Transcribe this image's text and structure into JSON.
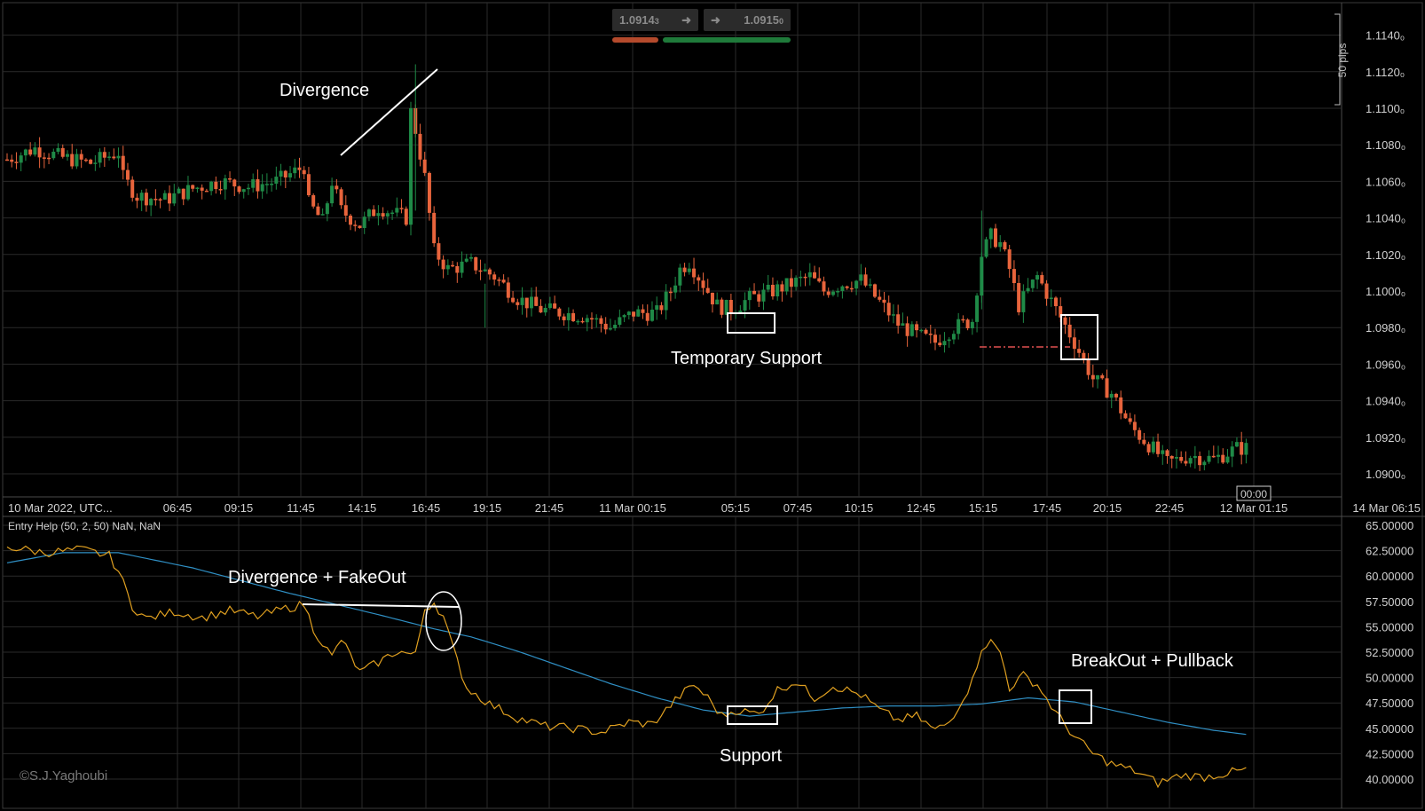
{
  "quote": {
    "bid": "1.0914",
    "bid_pipette": "3",
    "ask": "1.0915",
    "ask_pipette": "0",
    "arrow": "➜"
  },
  "range_marker": "50 pips",
  "indicator_label": "Entry Help (50, 2, 50) NaN, NaN",
  "watermark": "©S.J.Yaghoubi",
  "time_marker": "00:00",
  "colors": {
    "up": "#1f8a47",
    "down": "#e8643c",
    "osc": "#e0a020",
    "ma": "#2f8fc4",
    "grid": "#2a2a2a"
  },
  "annotations": {
    "divergence": "Divergence",
    "temp_support": "Temporary Support",
    "divergence_fakeout": "Divergence + FakeOut",
    "support": "Support",
    "breakout_pullback": "BreakOut + Pullback"
  },
  "chart_data": [
    {
      "type": "candlestick",
      "title": "",
      "xlabel": "",
      "ylabel": "",
      "y_ticks": [
        "1.1140₀",
        "1.1120₀",
        "1.1100₀",
        "1.1080₀",
        "1.1060₀",
        "1.1040₀",
        "1.1020₀",
        "1.1000₀",
        "1.0980₀",
        "1.0960₀",
        "1.0940₀",
        "1.0920₀",
        "1.0900₀"
      ],
      "y_tick_values": [
        1.114,
        1.112,
        1.11,
        1.108,
        1.106,
        1.104,
        1.102,
        1.1,
        1.098,
        1.096,
        1.094,
        1.092,
        1.09
      ],
      "x_ticks": [
        "10 Mar 2022, UTC...",
        "06:45",
        "09:15",
        "11:45",
        "14:15",
        "16:45",
        "19:15",
        "21:45",
        "11 Mar 00:15",
        "05:15",
        "07:45",
        "10:15",
        "12:45",
        "15:15",
        "17:45",
        "20:15",
        "22:45",
        "12 Mar 01:15",
        "14 Mar 06:15"
      ],
      "ylim": [
        1.0888,
        1.115
      ],
      "grid": true,
      "close_path": [
        [
          0,
          1.1072
        ],
        [
          6,
          1.1078
        ],
        [
          12,
          1.1073
        ],
        [
          18,
          1.107
        ],
        [
          24,
          1.1076
        ],
        [
          25,
          1.1062
        ],
        [
          28,
          1.1052
        ],
        [
          34,
          1.105
        ],
        [
          40,
          1.1056
        ],
        [
          46,
          1.106
        ],
        [
          52,
          1.1057
        ],
        [
          58,
          1.106
        ],
        [
          64,
          1.1068
        ],
        [
          65,
          1.1048
        ],
        [
          68,
          1.1038
        ],
        [
          70,
          1.106
        ],
        [
          72,
          1.1044
        ],
        [
          76,
          1.1036
        ],
        [
          80,
          1.1046
        ],
        [
          84,
          1.1042
        ],
        [
          86,
          1.104
        ],
        [
          87,
          1.1098
        ],
        [
          88,
          1.1088
        ],
        [
          90,
          1.1062
        ],
        [
          92,
          1.1022
        ],
        [
          95,
          1.1012
        ],
        [
          100,
          1.1015
        ],
        [
          105,
          1.1008
        ],
        [
          110,
          1.0996
        ],
        [
          115,
          1.099
        ],
        [
          120,
          1.0988
        ],
        [
          125,
          1.0986
        ],
        [
          130,
          1.098
        ],
        [
          135,
          1.0988
        ],
        [
          140,
          1.0988
        ],
        [
          143,
          1.1
        ],
        [
          145,
          1.1012
        ],
        [
          147,
          1.1016
        ],
        [
          150,
          1.1004
        ],
        [
          153,
          1.0992
        ],
        [
          156,
          1.099
        ],
        [
          160,
          1.0996
        ],
        [
          165,
          1.1
        ],
        [
          170,
          1.1005
        ],
        [
          173,
          1.1008
        ],
        [
          176,
          1.1
        ],
        [
          180,
          1.1004
        ],
        [
          184,
          1.1006
        ],
        [
          188,
          1.0994
        ],
        [
          192,
          1.0982
        ],
        [
          196,
          1.0976
        ],
        [
          200,
          1.0972
        ],
        [
          204,
          1.098
        ],
        [
          208,
          1.0984
        ],
        [
          210,
          1.102
        ],
        [
          212,
          1.103
        ],
        [
          214,
          1.1026
        ],
        [
          216,
          1.1012
        ],
        [
          218,
          1.0992
        ],
        [
          220,
          1.1
        ],
        [
          222,
          1.1008
        ],
        [
          226,
          1.099
        ],
        [
          230,
          1.0972
        ],
        [
          232,
          1.0962
        ],
        [
          234,
          1.0952
        ],
        [
          238,
          1.0944
        ],
        [
          242,
          1.0926
        ],
        [
          246,
          1.0916
        ],
        [
          250,
          1.0906
        ],
        [
          255,
          1.091
        ],
        [
          260,
          1.0908
        ],
        [
          265,
          1.0914
        ],
        [
          267,
          1.0914
        ]
      ]
    },
    {
      "type": "line",
      "title": "Entry Help (50, 2, 50) NaN, NaN",
      "y_ticks": [
        "65.00000",
        "62.50000",
        "60.00000",
        "57.50000",
        "55.00000",
        "52.50000",
        "50.00000",
        "47.50000",
        "45.00000",
        "42.50000",
        "40.00000"
      ],
      "y_tick_values": [
        65,
        62.5,
        60,
        57.5,
        55,
        52.5,
        50,
        47.5,
        45,
        42.5,
        40
      ],
      "ylim": [
        38.5,
        65.5
      ],
      "series": [
        {
          "values_path": [
            [
              0,
              62.9
            ],
            [
              8,
              62.3
            ],
            [
              16,
              62.6
            ],
            [
              22,
              62.0
            ],
            [
              24,
              60.5
            ],
            [
              27,
              57.0
            ],
            [
              30,
              55.8
            ],
            [
              36,
              56.5
            ],
            [
              42,
              55.9
            ],
            [
              48,
              56.6
            ],
            [
              54,
              56.0
            ],
            [
              60,
              56.8
            ],
            [
              64,
              57.2
            ],
            [
              66,
              54.8
            ],
            [
              70,
              52.0
            ],
            [
              72,
              53.8
            ],
            [
              76,
              50.5
            ],
            [
              80,
              51.5
            ],
            [
              84,
              52.6
            ],
            [
              88,
              52.2
            ],
            [
              90,
              56.8
            ],
            [
              92,
              57.4
            ],
            [
              94,
              56.0
            ],
            [
              96,
              53.0
            ],
            [
              99,
              49.0
            ],
            [
              104,
              47.4
            ],
            [
              110,
              46.0
            ],
            [
              116,
              45.2
            ],
            [
              122,
              45.0
            ],
            [
              128,
              44.6
            ],
            [
              134,
              45.6
            ],
            [
              139,
              45.4
            ],
            [
              145,
              48.2
            ],
            [
              148,
              49.3
            ],
            [
              151,
              48.0
            ],
            [
              154,
              46.2
            ],
            [
              157,
              46.8
            ],
            [
              162,
              46.4
            ],
            [
              166,
              48.8
            ],
            [
              170,
              49.6
            ],
            [
              174,
              48.0
            ],
            [
              178,
              49.2
            ],
            [
              184,
              48.3
            ],
            [
              188,
              46.8
            ],
            [
              192,
              45.8
            ],
            [
              196,
              46.2
            ],
            [
              200,
              44.8
            ],
            [
              203,
              45.6
            ],
            [
              206,
              48.0
            ],
            [
              208,
              49.6
            ],
            [
              210,
              53.0
            ],
            [
              212,
              53.5
            ],
            [
              214,
              52.5
            ],
            [
              216,
              49.0
            ],
            [
              219,
              50.2
            ],
            [
              222,
              49.3
            ],
            [
              226,
              46.5
            ],
            [
              230,
              44.2
            ],
            [
              234,
              42.5
            ],
            [
              238,
              41.5
            ],
            [
              243,
              40.8
            ],
            [
              248,
              39.6
            ],
            [
              253,
              40.4
            ],
            [
              258,
              40.2
            ],
            [
              263,
              40.6
            ],
            [
              267,
              40.9
            ]
          ]
        },
        {
          "values_path": [
            [
              0,
              61.3
            ],
            [
              12,
              62.3
            ],
            [
              24,
              62.3
            ],
            [
              40,
              60.8
            ],
            [
              60,
              58.4
            ],
            [
              80,
              56.2
            ],
            [
              92,
              54.8
            ],
            [
              100,
              54.0
            ],
            [
              110,
              52.6
            ],
            [
              120,
              51.0
            ],
            [
              130,
              49.4
            ],
            [
              140,
              48.0
            ],
            [
              150,
              46.8
            ],
            [
              160,
              46.2
            ],
            [
              170,
              46.6
            ],
            [
              180,
              47.0
            ],
            [
              190,
              47.2
            ],
            [
              200,
              47.2
            ],
            [
              210,
              47.4
            ],
            [
              220,
              48.0
            ],
            [
              230,
              47.6
            ],
            [
              240,
              46.6
            ],
            [
              250,
              45.6
            ],
            [
              260,
              44.8
            ],
            [
              267,
              44.4
            ]
          ]
        }
      ]
    }
  ]
}
